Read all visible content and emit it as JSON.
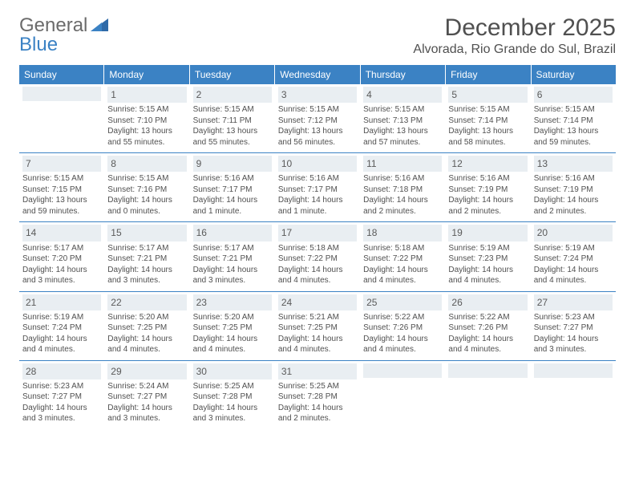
{
  "logo": {
    "text1": "General",
    "text2": "Blue"
  },
  "title": "December 2025",
  "location": "Alvorada, Rio Grande do Sul, Brazil",
  "colors": {
    "header_bg": "#3b82c4",
    "header_text": "#ffffff",
    "daynum_bg": "#e9eef2",
    "text": "#505050",
    "logo_gray": "#6b6b6b",
    "logo_blue": "#3b82c4",
    "row_divider": "#3b82c4"
  },
  "day_names": [
    "Sunday",
    "Monday",
    "Tuesday",
    "Wednesday",
    "Thursday",
    "Friday",
    "Saturday"
  ],
  "weeks": [
    [
      {
        "num": "",
        "sunrise": "",
        "sunset": "",
        "daylight": ""
      },
      {
        "num": "1",
        "sunrise": "Sunrise: 5:15 AM",
        "sunset": "Sunset: 7:10 PM",
        "daylight": "Daylight: 13 hours and 55 minutes."
      },
      {
        "num": "2",
        "sunrise": "Sunrise: 5:15 AM",
        "sunset": "Sunset: 7:11 PM",
        "daylight": "Daylight: 13 hours and 55 minutes."
      },
      {
        "num": "3",
        "sunrise": "Sunrise: 5:15 AM",
        "sunset": "Sunset: 7:12 PM",
        "daylight": "Daylight: 13 hours and 56 minutes."
      },
      {
        "num": "4",
        "sunrise": "Sunrise: 5:15 AM",
        "sunset": "Sunset: 7:13 PM",
        "daylight": "Daylight: 13 hours and 57 minutes."
      },
      {
        "num": "5",
        "sunrise": "Sunrise: 5:15 AM",
        "sunset": "Sunset: 7:14 PM",
        "daylight": "Daylight: 13 hours and 58 minutes."
      },
      {
        "num": "6",
        "sunrise": "Sunrise: 5:15 AM",
        "sunset": "Sunset: 7:14 PM",
        "daylight": "Daylight: 13 hours and 59 minutes."
      }
    ],
    [
      {
        "num": "7",
        "sunrise": "Sunrise: 5:15 AM",
        "sunset": "Sunset: 7:15 PM",
        "daylight": "Daylight: 13 hours and 59 minutes."
      },
      {
        "num": "8",
        "sunrise": "Sunrise: 5:15 AM",
        "sunset": "Sunset: 7:16 PM",
        "daylight": "Daylight: 14 hours and 0 minutes."
      },
      {
        "num": "9",
        "sunrise": "Sunrise: 5:16 AM",
        "sunset": "Sunset: 7:17 PM",
        "daylight": "Daylight: 14 hours and 1 minute."
      },
      {
        "num": "10",
        "sunrise": "Sunrise: 5:16 AM",
        "sunset": "Sunset: 7:17 PM",
        "daylight": "Daylight: 14 hours and 1 minute."
      },
      {
        "num": "11",
        "sunrise": "Sunrise: 5:16 AM",
        "sunset": "Sunset: 7:18 PM",
        "daylight": "Daylight: 14 hours and 2 minutes."
      },
      {
        "num": "12",
        "sunrise": "Sunrise: 5:16 AM",
        "sunset": "Sunset: 7:19 PM",
        "daylight": "Daylight: 14 hours and 2 minutes."
      },
      {
        "num": "13",
        "sunrise": "Sunrise: 5:16 AM",
        "sunset": "Sunset: 7:19 PM",
        "daylight": "Daylight: 14 hours and 2 minutes."
      }
    ],
    [
      {
        "num": "14",
        "sunrise": "Sunrise: 5:17 AM",
        "sunset": "Sunset: 7:20 PM",
        "daylight": "Daylight: 14 hours and 3 minutes."
      },
      {
        "num": "15",
        "sunrise": "Sunrise: 5:17 AM",
        "sunset": "Sunset: 7:21 PM",
        "daylight": "Daylight: 14 hours and 3 minutes."
      },
      {
        "num": "16",
        "sunrise": "Sunrise: 5:17 AM",
        "sunset": "Sunset: 7:21 PM",
        "daylight": "Daylight: 14 hours and 3 minutes."
      },
      {
        "num": "17",
        "sunrise": "Sunrise: 5:18 AM",
        "sunset": "Sunset: 7:22 PM",
        "daylight": "Daylight: 14 hours and 4 minutes."
      },
      {
        "num": "18",
        "sunrise": "Sunrise: 5:18 AM",
        "sunset": "Sunset: 7:22 PM",
        "daylight": "Daylight: 14 hours and 4 minutes."
      },
      {
        "num": "19",
        "sunrise": "Sunrise: 5:19 AM",
        "sunset": "Sunset: 7:23 PM",
        "daylight": "Daylight: 14 hours and 4 minutes."
      },
      {
        "num": "20",
        "sunrise": "Sunrise: 5:19 AM",
        "sunset": "Sunset: 7:24 PM",
        "daylight": "Daylight: 14 hours and 4 minutes."
      }
    ],
    [
      {
        "num": "21",
        "sunrise": "Sunrise: 5:19 AM",
        "sunset": "Sunset: 7:24 PM",
        "daylight": "Daylight: 14 hours and 4 minutes."
      },
      {
        "num": "22",
        "sunrise": "Sunrise: 5:20 AM",
        "sunset": "Sunset: 7:25 PM",
        "daylight": "Daylight: 14 hours and 4 minutes."
      },
      {
        "num": "23",
        "sunrise": "Sunrise: 5:20 AM",
        "sunset": "Sunset: 7:25 PM",
        "daylight": "Daylight: 14 hours and 4 minutes."
      },
      {
        "num": "24",
        "sunrise": "Sunrise: 5:21 AM",
        "sunset": "Sunset: 7:25 PM",
        "daylight": "Daylight: 14 hours and 4 minutes."
      },
      {
        "num": "25",
        "sunrise": "Sunrise: 5:22 AM",
        "sunset": "Sunset: 7:26 PM",
        "daylight": "Daylight: 14 hours and 4 minutes."
      },
      {
        "num": "26",
        "sunrise": "Sunrise: 5:22 AM",
        "sunset": "Sunset: 7:26 PM",
        "daylight": "Daylight: 14 hours and 4 minutes."
      },
      {
        "num": "27",
        "sunrise": "Sunrise: 5:23 AM",
        "sunset": "Sunset: 7:27 PM",
        "daylight": "Daylight: 14 hours and 3 minutes."
      }
    ],
    [
      {
        "num": "28",
        "sunrise": "Sunrise: 5:23 AM",
        "sunset": "Sunset: 7:27 PM",
        "daylight": "Daylight: 14 hours and 3 minutes."
      },
      {
        "num": "29",
        "sunrise": "Sunrise: 5:24 AM",
        "sunset": "Sunset: 7:27 PM",
        "daylight": "Daylight: 14 hours and 3 minutes."
      },
      {
        "num": "30",
        "sunrise": "Sunrise: 5:25 AM",
        "sunset": "Sunset: 7:28 PM",
        "daylight": "Daylight: 14 hours and 3 minutes."
      },
      {
        "num": "31",
        "sunrise": "Sunrise: 5:25 AM",
        "sunset": "Sunset: 7:28 PM",
        "daylight": "Daylight: 14 hours and 2 minutes."
      },
      {
        "num": "",
        "sunrise": "",
        "sunset": "",
        "daylight": ""
      },
      {
        "num": "",
        "sunrise": "",
        "sunset": "",
        "daylight": ""
      },
      {
        "num": "",
        "sunrise": "",
        "sunset": "",
        "daylight": ""
      }
    ]
  ]
}
